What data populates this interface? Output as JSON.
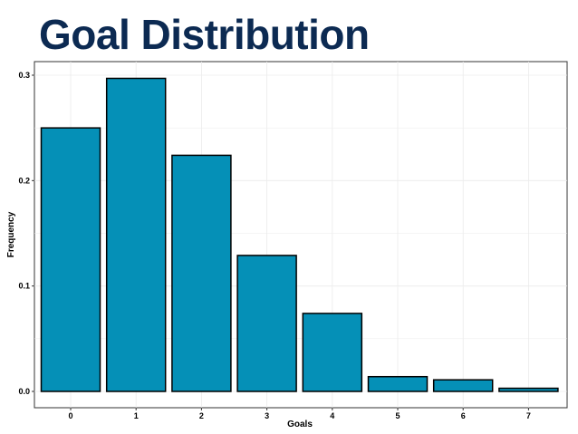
{
  "slide": {
    "title": "Goal Distribution"
  },
  "colors": {
    "title": "#0c2a52",
    "bar_fill": "#0590b7",
    "bar_stroke": "#000000",
    "grid": "#ebebeb",
    "panel_border": "#333333"
  },
  "chart_data": {
    "type": "bar",
    "title": "",
    "xlabel": "Goals",
    "ylabel": "Frequency",
    "categories": [
      "0",
      "1",
      "2",
      "3",
      "4",
      "5",
      "6",
      "7"
    ],
    "values": [
      0.25,
      0.297,
      0.224,
      0.129,
      0.074,
      0.014,
      0.011,
      0.003
    ],
    "ylim": [
      0,
      0.3
    ],
    "yticks": [
      "0.0",
      "0.1",
      "0.2",
      "0.3"
    ],
    "grid": true,
    "legend": "none"
  }
}
